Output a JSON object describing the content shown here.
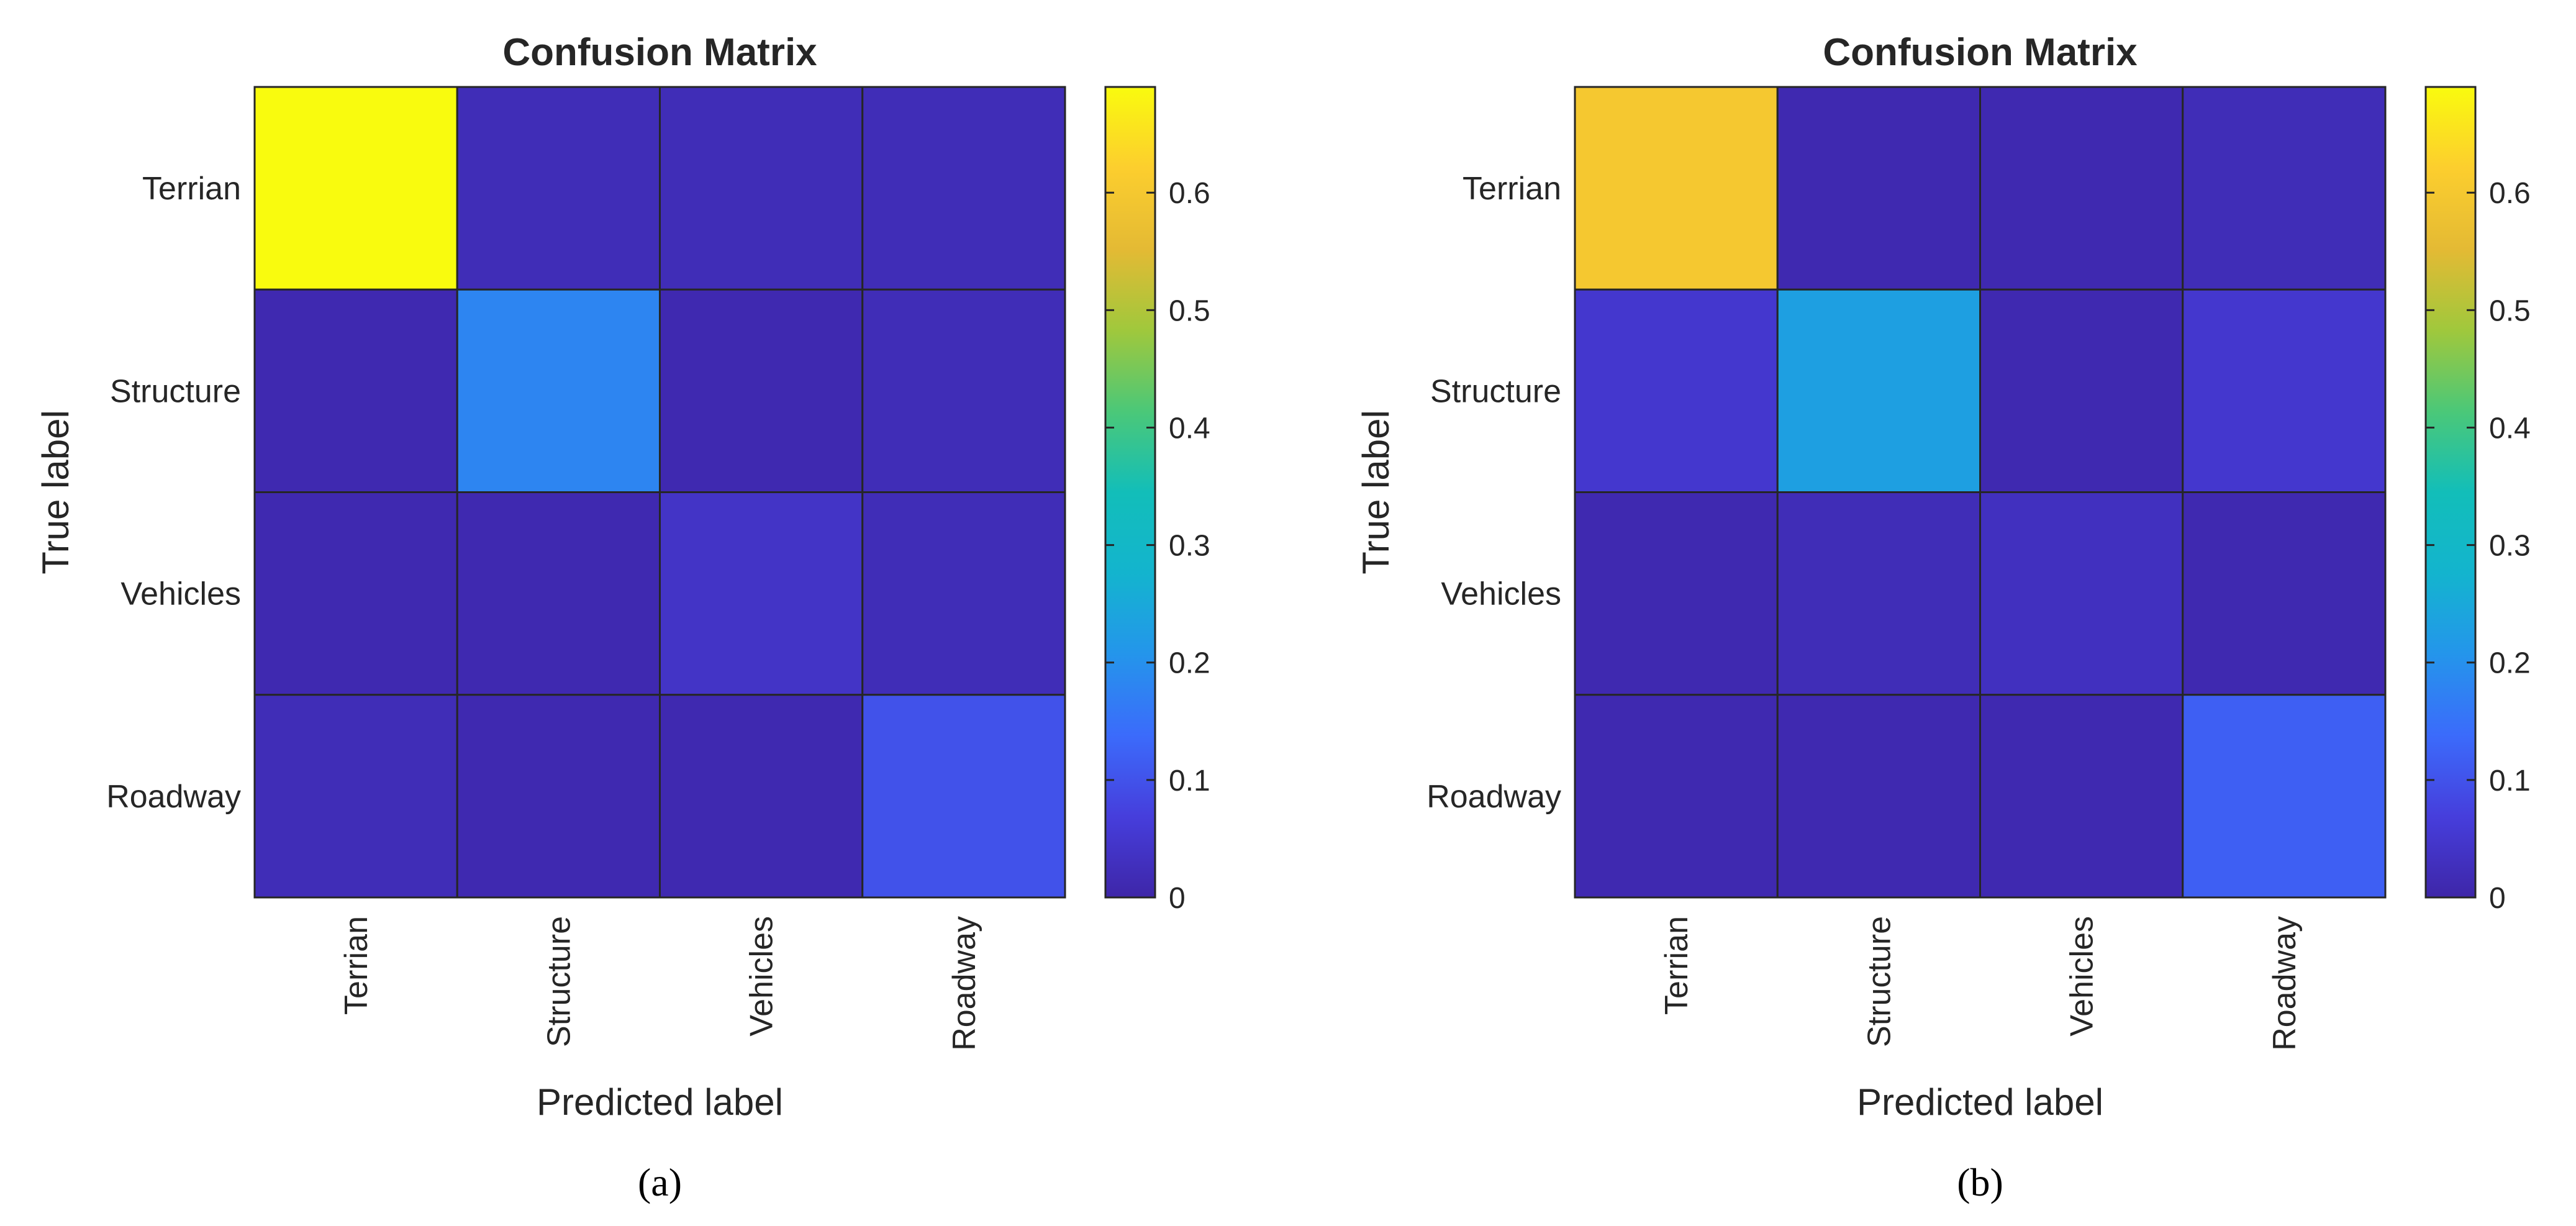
{
  "chart_data": [
    {
      "type": "heatmap",
      "title": "Confusion Matrix",
      "xlabel": "Predicted label",
      "ylabel": "True label",
      "x_categories": [
        "Terrian",
        "Structure",
        "Vehicles",
        "Roadway"
      ],
      "y_categories": [
        "Terrian",
        "Structure",
        "Vehicles",
        "Roadway"
      ],
      "values": [
        [
          0.69,
          0.02,
          0.02,
          0.02
        ],
        [
          0.01,
          0.18,
          0.01,
          0.02
        ],
        [
          0.01,
          0.01,
          0.04,
          0.02
        ],
        [
          0.02,
          0.01,
          0.01,
          0.1
        ]
      ],
      "colorbar": {
        "range": [
          0,
          0.69
        ],
        "ticks": [
          "0",
          "0.1",
          "0.2",
          "0.3",
          "0.4",
          "0.5",
          "0.6"
        ],
        "tick_values": [
          0,
          0.1,
          0.2,
          0.3,
          0.4,
          0.5,
          0.6
        ],
        "colormap": "parula"
      },
      "caption": "(a)"
    },
    {
      "type": "heatmap",
      "title": "Confusion Matrix",
      "xlabel": "Predicted label",
      "ylabel": "True label",
      "x_categories": [
        "Terrian",
        "Structure",
        "Vehicles",
        "Roadway"
      ],
      "y_categories": [
        "Terrian",
        "Structure",
        "Vehicles",
        "Roadway"
      ],
      "values": [
        [
          0.6,
          0.01,
          0.01,
          0.02
        ],
        [
          0.05,
          0.23,
          0.01,
          0.05
        ],
        [
          0.01,
          0.02,
          0.03,
          0.01
        ],
        [
          0.01,
          0.01,
          0.01,
          0.12
        ]
      ],
      "colorbar": {
        "range": [
          0,
          0.69
        ],
        "ticks": [
          "0",
          "0.1",
          "0.2",
          "0.3",
          "0.4",
          "0.5",
          "0.6"
        ],
        "tick_values": [
          0,
          0.1,
          0.2,
          0.3,
          0.4,
          0.5,
          0.6
        ],
        "colormap": "parula"
      },
      "caption": "(b)"
    }
  ]
}
